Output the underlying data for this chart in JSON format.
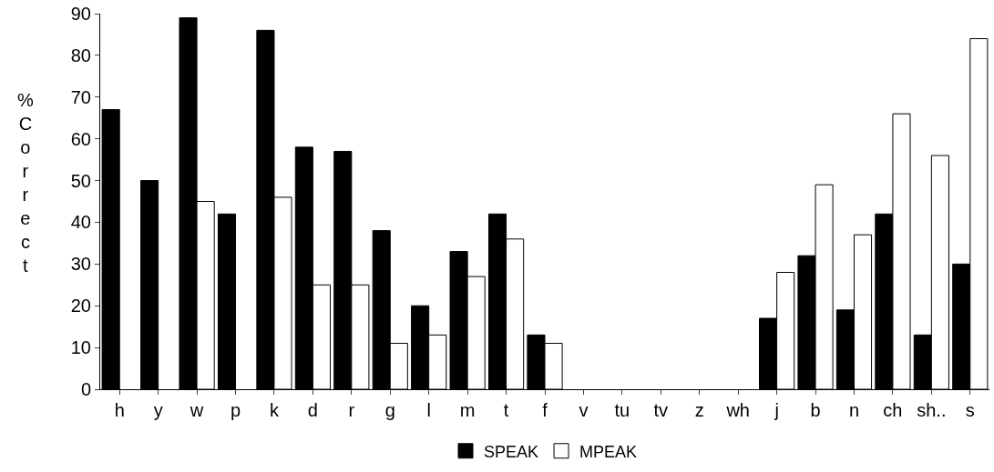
{
  "chart_data": {
    "type": "bar",
    "ylabel": "%\nC\no\nr\nr\ne\nc\nt",
    "categories": [
      "h",
      "y",
      "w",
      "p",
      "k",
      "d",
      "r",
      "g",
      "l",
      "m",
      "t",
      "f",
      "v",
      "tu",
      "tv",
      "z",
      "wh",
      "j",
      "b",
      "n",
      "ch",
      "sh..",
      "s"
    ],
    "series": [
      {
        "name": "SPEAK",
        "color": "#000000",
        "values": [
          67,
          50,
          89,
          42,
          86,
          58,
          57,
          38,
          20,
          33,
          42,
          13,
          0,
          0,
          0,
          0,
          0,
          17,
          32,
          19,
          42,
          13,
          30
        ]
      },
      {
        "name": "MPEAK",
        "color": "#ffffff",
        "values": [
          0,
          0,
          45,
          0,
          46,
          25,
          25,
          11,
          13,
          27,
          36,
          11,
          0,
          0,
          0,
          0,
          0,
          28,
          49,
          37,
          66,
          56,
          84
        ]
      }
    ],
    "ylim": [
      0,
      90
    ],
    "yticks": [
      0,
      10,
      20,
      30,
      40,
      50,
      60,
      70,
      80,
      90
    ],
    "legend": "bottom"
  }
}
